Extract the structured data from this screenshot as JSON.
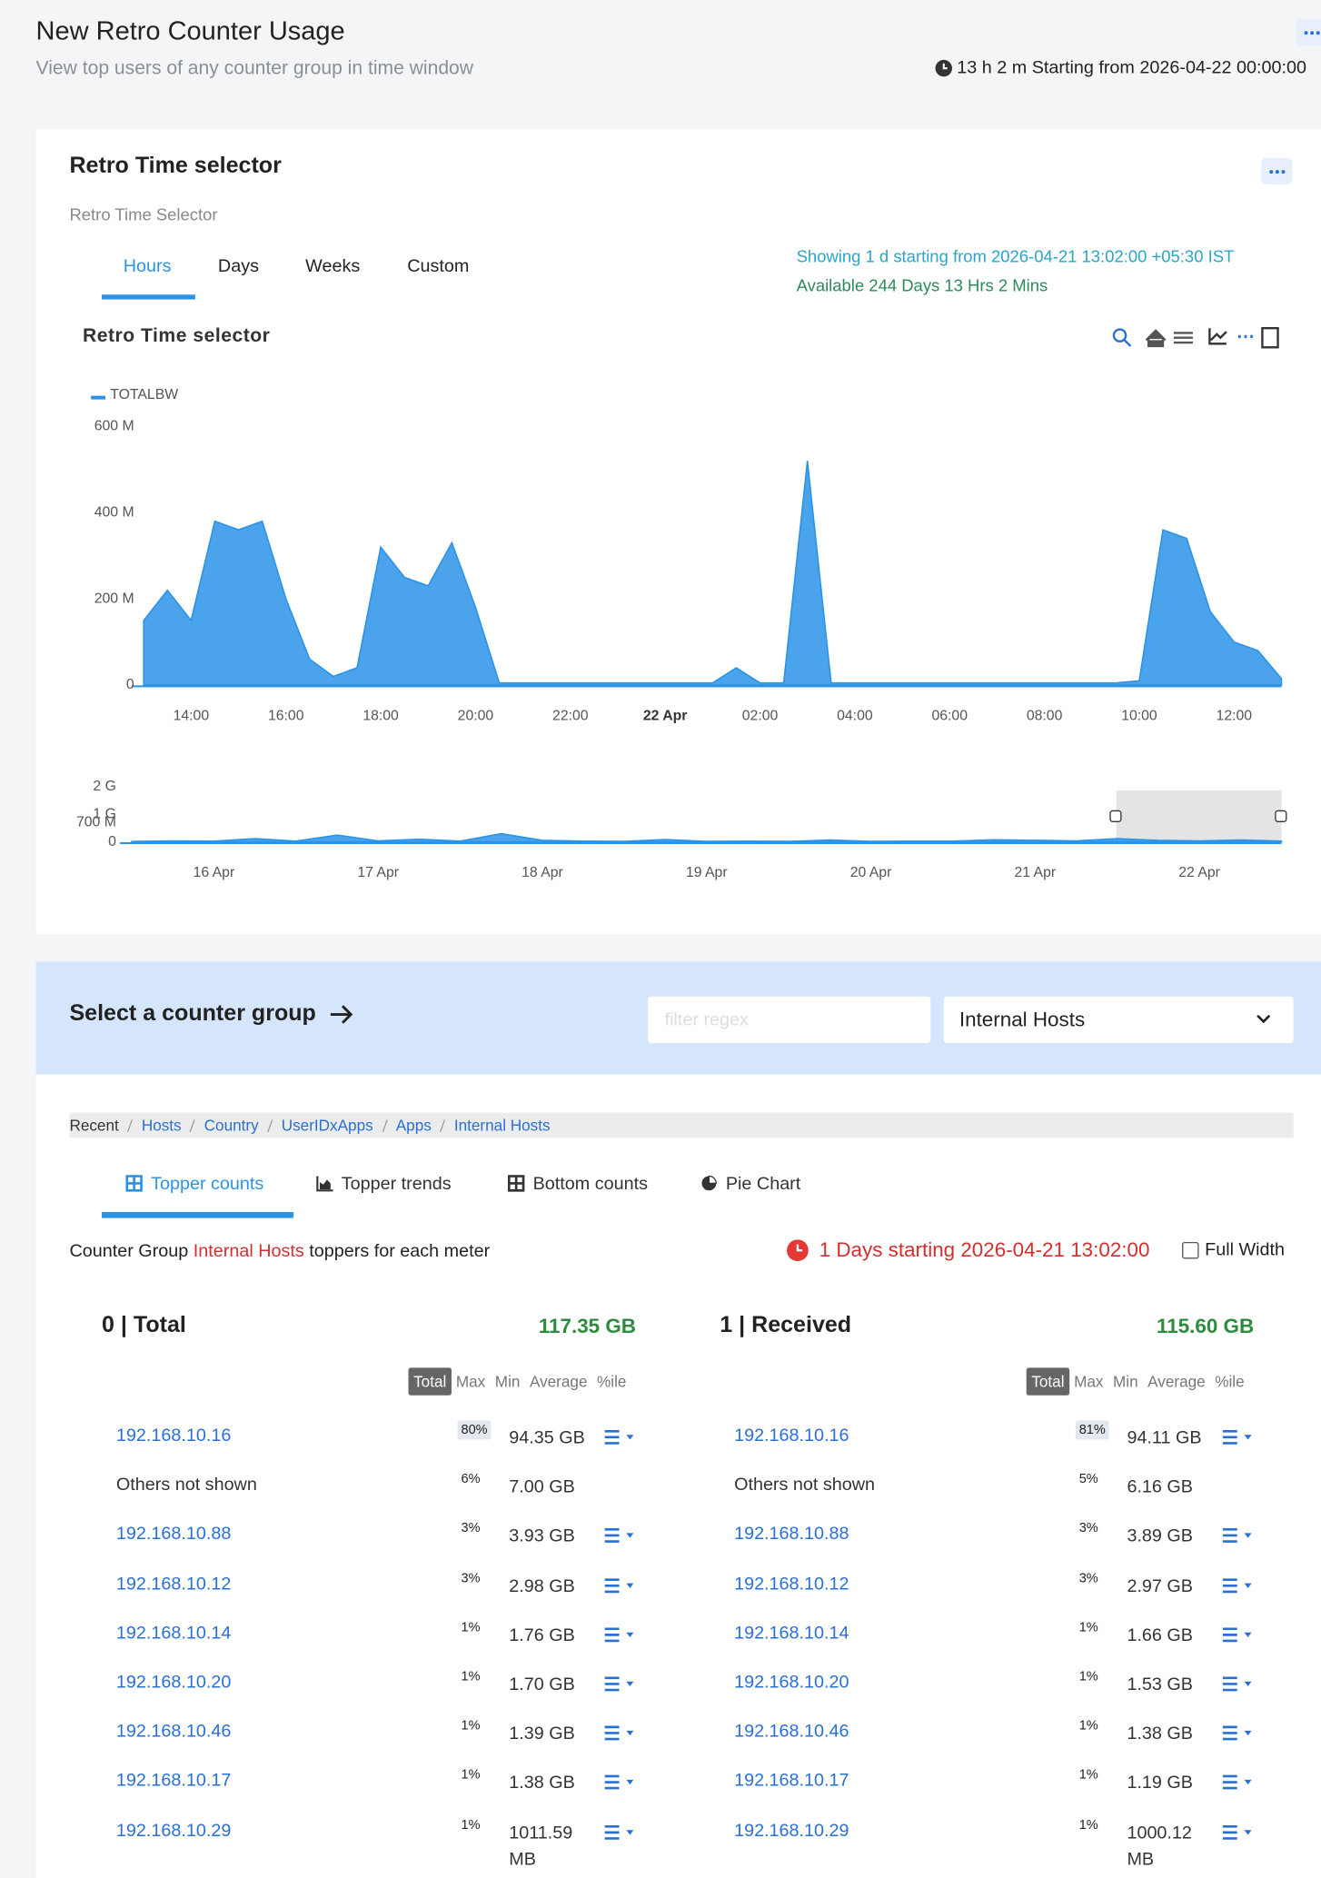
{
  "header": {
    "title": "New Retro Counter Usage",
    "subtitle": "View top users of any counter group in time window",
    "time_info": "13 h 2 m Starting from 2026-04-22 00:00:00"
  },
  "time_selector": {
    "title": "Retro Time selector",
    "subtitle": "Retro Time Selector",
    "tabs": [
      "Hours",
      "Days",
      "Weeks",
      "Custom"
    ],
    "showing": "Showing 1 d starting from 2026-04-21 13:02:00 +05:30 IST",
    "available": "Available 244 Days 13 Hrs 2 Mins"
  },
  "chart_data": [
    {
      "type": "area",
      "title": "Retro Time selector",
      "categories": [
        null,
        null,
        "14:00",
        null,
        null,
        null,
        "16:00",
        null,
        null,
        null,
        "18:00",
        null,
        null,
        null,
        "20:00",
        null,
        null,
        null,
        "22:00",
        null,
        null,
        null,
        "22 Apr",
        null,
        null,
        null,
        "02:00",
        null,
        null,
        null,
        "04:00",
        null,
        null,
        null,
        "06:00",
        null,
        null,
        null,
        "08:00",
        null,
        null,
        null,
        "10:00",
        null,
        null,
        null,
        "12:00",
        null,
        null
      ],
      "series": [
        {
          "name": "TOTALBW",
          "color": "#2a93e8",
          "values": [
            150,
            220,
            150,
            380,
            360,
            380,
            200,
            60,
            20,
            40,
            320,
            250,
            230,
            330,
            180,
            5,
            5,
            5,
            5,
            5,
            5,
            5,
            5,
            5,
            5,
            40,
            5,
            5,
            520,
            5,
            5,
            5,
            5,
            5,
            5,
            5,
            5,
            5,
            5,
            5,
            5,
            5,
            10,
            360,
            340,
            170,
            100,
            80,
            15
          ]
        }
      ],
      "ylim": [
        0,
        600
      ],
      "yticks": [
        {
          "value": 0,
          "label": "0"
        },
        {
          "value": 200,
          "label": "200 M"
        },
        {
          "value": 400,
          "label": "400 M"
        },
        {
          "value": 600,
          "label": "600 M"
        }
      ],
      "grid": false,
      "legend": "top-left"
    },
    {
      "type": "area",
      "categories": [
        null,
        null,
        "16 Apr",
        null,
        null,
        null,
        "17 Apr",
        null,
        null,
        null,
        "18 Apr",
        null,
        null,
        null,
        "19 Apr",
        null,
        null,
        null,
        "20 Apr",
        null,
        null,
        null,
        "21 Apr",
        null,
        null,
        null,
        "22 Apr",
        null,
        null
      ],
      "values": [
        20,
        40,
        30,
        120,
        30,
        250,
        40,
        100,
        30,
        300,
        60,
        30,
        20,
        90,
        20,
        30,
        20,
        70,
        20,
        30,
        30,
        80,
        60,
        40,
        120,
        60,
        40,
        70,
        30
      ],
      "color": "#2a93e8",
      "ylim": [
        0,
        2000
      ],
      "yticks": [
        {
          "value": 0,
          "label": "0"
        },
        {
          "value": 700,
          "label": "700 M"
        },
        {
          "value": 1000,
          "label": "1 G"
        },
        {
          "value": 2000,
          "label": "2 G"
        }
      ],
      "grid": false
    }
  ],
  "counter_group": {
    "label": "Select a counter group",
    "filter_placeholder": "filter regex",
    "selected": "Internal Hosts"
  },
  "breadcrumbs": [
    "Recent",
    "Hosts",
    "Country",
    "UserIDxApps",
    "Apps",
    "Internal Hosts"
  ],
  "result_tabs": [
    "Topper counts",
    "Topper trends",
    "Bottom counts",
    "Pie Chart"
  ],
  "summary": {
    "prefix": "Counter Group",
    "group": "Internal Hosts",
    "suffix": "toppers for each meter",
    "window": "1 Days starting 2026-04-21 13:02:00",
    "full_width": "Full Width"
  },
  "tables": [
    {
      "title": "0 | Total",
      "total": "117.35 GB",
      "columns": [
        "Total",
        "Max",
        "Min",
        "Average",
        "%ile"
      ],
      "rows": [
        {
          "host": "192.168.10.16",
          "percent": "80%",
          "value": "94.35 GB"
        },
        {
          "host": "Others not shown",
          "percent": "6%",
          "value": "7.00 GB"
        },
        {
          "host": "192.168.10.88",
          "percent": "3%",
          "value": "3.93 GB"
        },
        {
          "host": "192.168.10.12",
          "percent": "3%",
          "value": "2.98 GB"
        },
        {
          "host": "192.168.10.14",
          "percent": "1%",
          "value": "1.76 GB"
        },
        {
          "host": "192.168.10.20",
          "percent": "1%",
          "value": "1.70 GB"
        },
        {
          "host": "192.168.10.46",
          "percent": "1%",
          "value": "1.39 GB"
        },
        {
          "host": "192.168.10.17",
          "percent": "1%",
          "value": "1.38 GB"
        },
        {
          "host": "192.168.10.29",
          "percent": "1%",
          "value": "1011.59 MB"
        }
      ]
    },
    {
      "title": "1 | Received",
      "total": "115.60 GB",
      "columns": [
        "Total",
        "Max",
        "Min",
        "Average",
        "%ile"
      ],
      "rows": [
        {
          "host": "192.168.10.16",
          "percent": "81%",
          "value": "94.11 GB"
        },
        {
          "host": "Others not shown",
          "percent": "5%",
          "value": "6.16 GB"
        },
        {
          "host": "192.168.10.88",
          "percent": "3%",
          "value": "3.89 GB"
        },
        {
          "host": "192.168.10.12",
          "percent": "3%",
          "value": "2.97 GB"
        },
        {
          "host": "192.168.10.14",
          "percent": "1%",
          "value": "1.66 GB"
        },
        {
          "host": "192.168.10.20",
          "percent": "1%",
          "value": "1.53 GB"
        },
        {
          "host": "192.168.10.46",
          "percent": "1%",
          "value": "1.38 GB"
        },
        {
          "host": "192.168.10.17",
          "percent": "1%",
          "value": "1.19 GB"
        },
        {
          "host": "192.168.10.29",
          "percent": "1%",
          "value": "1000.12 MB"
        }
      ]
    }
  ]
}
